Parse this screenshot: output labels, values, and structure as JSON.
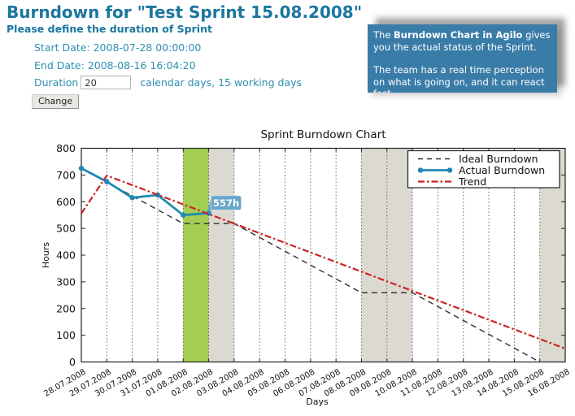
{
  "page": {
    "title": "Burndown for \"Test Sprint 15.08.2008\"",
    "subtitle": "Please define the duration of Sprint"
  },
  "sprint_info": {
    "start_label": "Start Date:",
    "start_value": "2008-07-28 00:00:00",
    "end_label": "End Date:",
    "end_value": "2008-08-16 16:04:20"
  },
  "duration": {
    "label": "Duration",
    "value": "20",
    "suffix": "calendar days, 15 working days"
  },
  "change_button_label": "Change",
  "info_box": {
    "p1_prefix": "The ",
    "p1_bold": "Burndown Chart in Agilo",
    "p1_rest": " gives you the actual status of the Sprint.",
    "p2": "The team has a real time perception on what is going on, and it can react fast."
  },
  "colors": {
    "heading": "#1a769e",
    "body_text": "#2e8fb2",
    "info_box_bg": "#3a7ca8",
    "info_box_text": "#ffffff"
  },
  "chart_data": {
    "type": "line",
    "title": "Sprint Burndown Chart",
    "xlabel": "Days",
    "ylabel": "Hours",
    "ylim": [
      0,
      800
    ],
    "yticks": [
      0,
      100,
      200,
      300,
      400,
      500,
      600,
      700,
      800
    ],
    "x_labels": [
      "28.07.2008",
      "29.07.2008",
      "30.07.2008",
      "31.07.2008",
      "01.08.2008",
      "02.08.2008",
      "03.08.2008",
      "04.08.2008",
      "05.08.2008",
      "06.08.2008",
      "07.08.2008",
      "08.08.2008",
      "09.08.2008",
      "10.08.2008",
      "11.08.2008",
      "12.08.2008",
      "13.08.2008",
      "14.08.2008",
      "15.08.2008",
      "16.08.2008"
    ],
    "grid": "vertical-dotted",
    "legend_position": "upper right",
    "bands": [
      {
        "label": "today",
        "from": 4,
        "to": 5,
        "color": "#a3ce52"
      },
      {
        "label": "weekend",
        "from": 5,
        "to": 6,
        "color": "#dcd9d0"
      },
      {
        "label": "weekend",
        "from": 11,
        "to": 13,
        "color": "#dcd9d0"
      },
      {
        "label": "weekend",
        "from": 18,
        "to": 19,
        "color": "#dcd9d0"
      }
    ],
    "series": [
      {
        "name": "Ideal Burndown",
        "style": "dashed",
        "color": "#2f2f2f",
        "points": [
          [
            0,
            725
          ],
          [
            4,
            518
          ],
          [
            6,
            518
          ],
          [
            11,
            259
          ],
          [
            13,
            259
          ],
          [
            18,
            0
          ]
        ]
      },
      {
        "name": "Actual Burndown",
        "style": "solid-markers",
        "color": "#1e89b2",
        "points": [
          [
            0,
            725
          ],
          [
            1,
            675
          ],
          [
            2,
            615
          ],
          [
            3,
            625
          ],
          [
            4,
            550
          ],
          [
            5,
            557
          ]
        ]
      },
      {
        "name": "Trend",
        "style": "dashdot",
        "color": "#cc2222",
        "points": [
          [
            0,
            556
          ],
          [
            1,
            698
          ],
          [
            19,
            50
          ]
        ]
      }
    ],
    "annotation": {
      "text": "557h",
      "day": 5,
      "value": 557,
      "bg": "#68a5c9",
      "fg": "#ffffff"
    }
  }
}
